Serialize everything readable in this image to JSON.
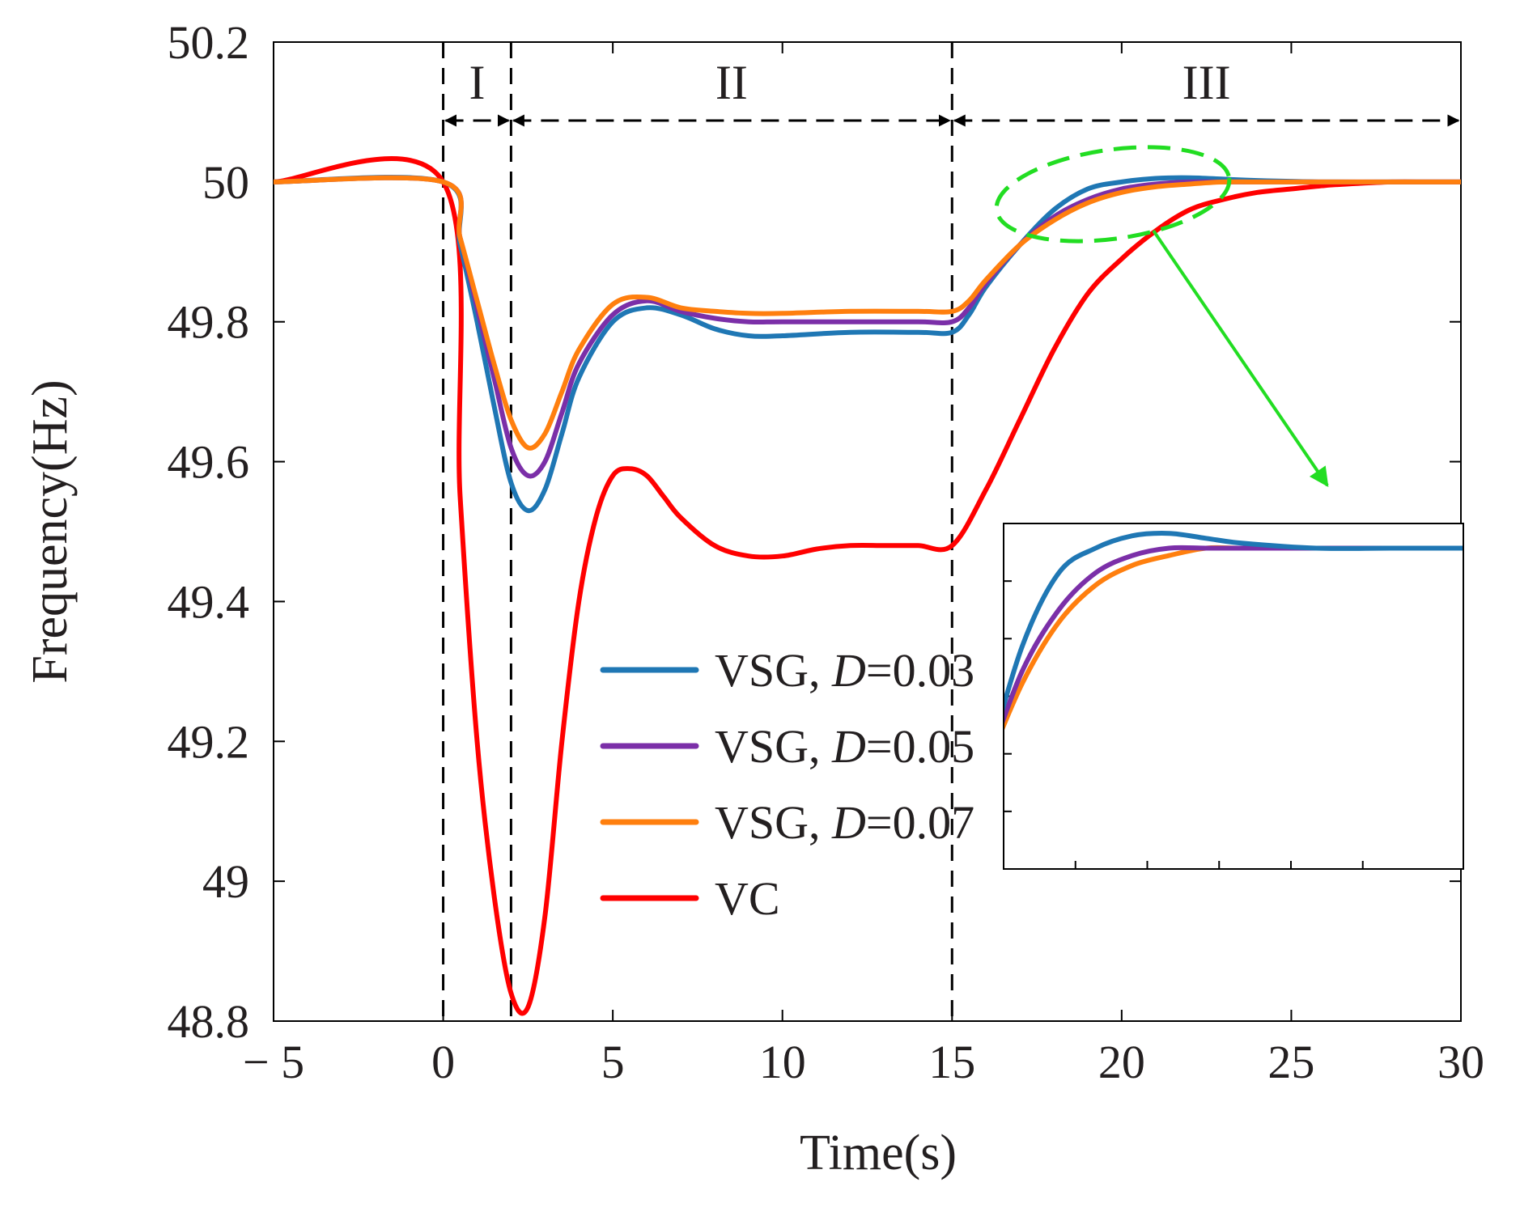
{
  "chart_data": {
    "type": "line",
    "title": "",
    "xlabel": "Time(s)",
    "ylabel": "Frequency(Hz)",
    "xlim": [
      -5,
      30
    ],
    "ylim": [
      48.8,
      50.2
    ],
    "xticks": [
      -5,
      0,
      5,
      10,
      15,
      20,
      25,
      30
    ],
    "yticks": [
      48.8,
      49,
      49.2,
      49.4,
      49.6,
      49.8,
      50,
      50.2
    ],
    "xtick_labels": [
      "− 5",
      "0",
      "5",
      "10",
      "15",
      "20",
      "25",
      "30"
    ],
    "ytick_labels": [
      "48.8",
      "49",
      "49.2",
      "49.4",
      "49.6",
      "49.8",
      "50",
      "50.2"
    ],
    "grid": false,
    "legend_position": "bottom-center",
    "regions": [
      {
        "label": "I",
        "start": 0,
        "end": 2
      },
      {
        "label": "II",
        "start": 2,
        "end": 15
      },
      {
        "label": "III",
        "start": 15,
        "end": 30
      }
    ],
    "series": [
      {
        "name": "VSG, D=0.03",
        "prefix": "VSG, ",
        "italic": "D",
        "suffix": "=0.03",
        "color": "#1f77b4",
        "x": [
          -5,
          0,
          0.5,
          1,
          1.5,
          2,
          2.5,
          3,
          3.5,
          4,
          5,
          6,
          7,
          8,
          9,
          10,
          12,
          14,
          15,
          15.5,
          16,
          17,
          18,
          19,
          20,
          21,
          22,
          23,
          24,
          26,
          28,
          30
        ],
        "y": [
          50,
          50,
          49.91,
          49.8,
          49.68,
          49.57,
          49.53,
          49.56,
          49.64,
          49.72,
          49.8,
          49.82,
          49.81,
          49.79,
          49.78,
          49.78,
          49.785,
          49.785,
          49.785,
          49.81,
          49.85,
          49.91,
          49.96,
          49.99,
          50.0,
          50.005,
          50.006,
          50.004,
          50.002,
          50.0,
          50.0,
          50.0
        ]
      },
      {
        "name": "VSG, D=0.05",
        "prefix": "VSG, ",
        "italic": "D",
        "suffix": "=0.05",
        "color": "#7b2fa8",
        "x": [
          -5,
          0,
          0.5,
          1,
          1.5,
          2,
          2.5,
          3,
          3.5,
          4,
          5,
          6,
          7,
          8,
          9,
          10,
          12,
          14,
          15,
          15.5,
          16,
          17,
          18,
          19,
          20,
          21,
          22,
          23,
          24,
          26,
          28,
          30
        ],
        "y": [
          50,
          50,
          49.92,
          49.82,
          49.72,
          49.62,
          49.58,
          49.6,
          49.67,
          49.74,
          49.81,
          49.83,
          49.815,
          49.805,
          49.8,
          49.8,
          49.8,
          49.8,
          49.8,
          49.82,
          49.855,
          49.91,
          49.95,
          49.975,
          49.99,
          49.997,
          50.0,
          50.0,
          50.0,
          50.0,
          50.0,
          50.0
        ]
      },
      {
        "name": "VSG, D=0.07",
        "prefix": "VSG, ",
        "italic": "D",
        "suffix": "=0.07",
        "color": "#ff7f0e",
        "x": [
          -5,
          0,
          0.5,
          1,
          1.5,
          2,
          2.5,
          3,
          3.5,
          4,
          5,
          6,
          7,
          8,
          9,
          10,
          12,
          14,
          15,
          15.5,
          16,
          17,
          18,
          19,
          20,
          21,
          22,
          23,
          24,
          26,
          28,
          30
        ],
        "y": [
          50,
          50,
          49.92,
          49.83,
          49.74,
          49.66,
          49.62,
          49.64,
          49.7,
          49.76,
          49.825,
          49.835,
          49.82,
          49.815,
          49.812,
          49.812,
          49.815,
          49.815,
          49.815,
          49.83,
          49.86,
          49.91,
          49.945,
          49.97,
          49.985,
          49.993,
          49.997,
          50.0,
          50.0,
          50.0,
          50.0,
          50.0
        ]
      },
      {
        "name": "VC",
        "prefix": "VC",
        "italic": "",
        "suffix": "",
        "color": "#ff0000",
        "x": [
          -5,
          0,
          0.5,
          1,
          1.5,
          2,
          2.5,
          3,
          3.5,
          4,
          4.5,
          5,
          5.5,
          6,
          6.5,
          7,
          8,
          9,
          10,
          11,
          12,
          13,
          14,
          15,
          16,
          17,
          18,
          19,
          20,
          21,
          22,
          23,
          24,
          25,
          26,
          27,
          28,
          29,
          30
        ],
        "y": [
          50,
          50,
          49.55,
          49.2,
          48.98,
          48.84,
          48.82,
          48.95,
          49.2,
          49.4,
          49.52,
          49.58,
          49.59,
          49.58,
          49.55,
          49.52,
          49.48,
          49.465,
          49.465,
          49.475,
          49.48,
          49.48,
          49.48,
          49.48,
          49.56,
          49.66,
          49.76,
          49.84,
          49.89,
          49.93,
          49.96,
          49.975,
          49.985,
          49.99,
          49.995,
          49.998,
          50.0,
          50.0,
          50.0
        ]
      }
    ],
    "zoom_inset": {
      "x_range": [
        17.5,
        30
      ],
      "y_range": [
        49.87,
        50.01
      ]
    }
  }
}
